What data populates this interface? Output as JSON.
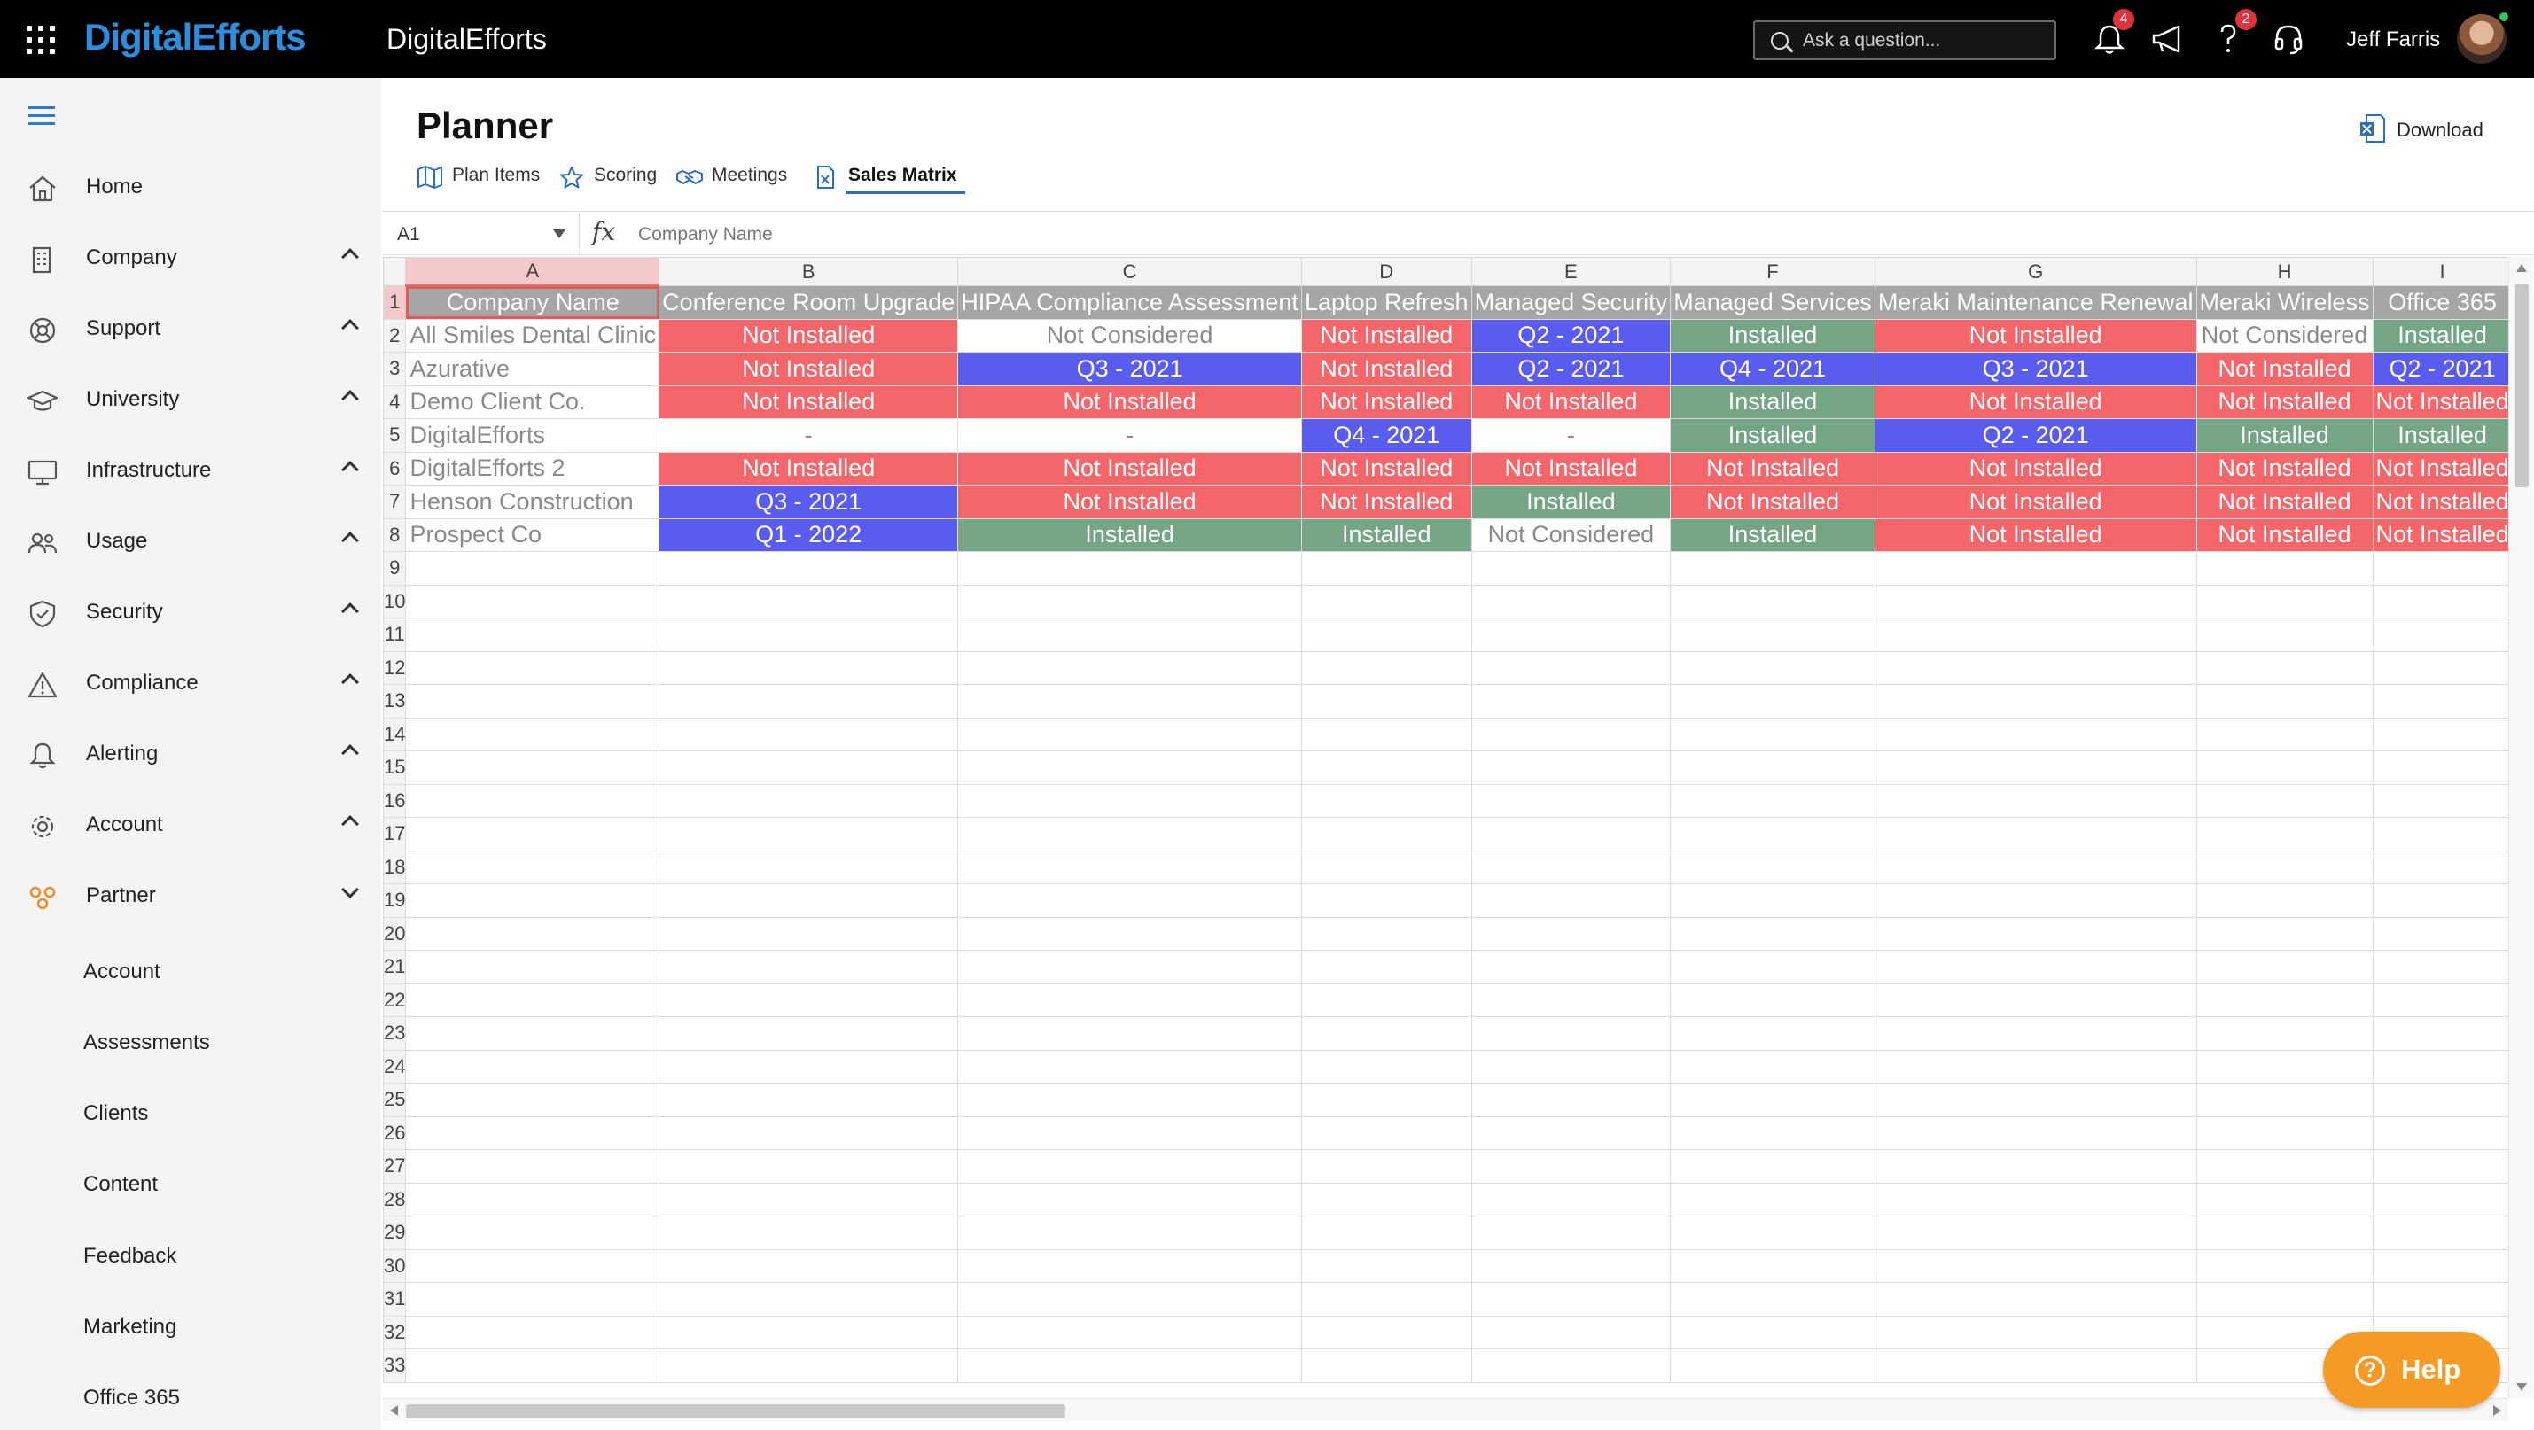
{
  "topbar": {
    "brand": "DigitalEfforts",
    "app_title": "DigitalEfforts",
    "search_placeholder": "Ask a question...",
    "notifications_count": "4",
    "help_count": "2",
    "user_name": "Jeff Farris"
  },
  "sidebar": {
    "items": [
      {
        "label": "Home",
        "icon": "home-icon",
        "chevron": ""
      },
      {
        "label": "Company",
        "icon": "building-icon",
        "chevron": "up"
      },
      {
        "label": "Support",
        "icon": "lifebuoy-icon",
        "chevron": "up"
      },
      {
        "label": "University",
        "icon": "graduation-cap-icon",
        "chevron": "up"
      },
      {
        "label": "Infrastructure",
        "icon": "monitor-icon",
        "chevron": "up"
      },
      {
        "label": "Usage",
        "icon": "people-icon",
        "chevron": "up"
      },
      {
        "label": "Security",
        "icon": "shield-icon",
        "chevron": "up"
      },
      {
        "label": "Compliance",
        "icon": "warning-icon",
        "chevron": "up"
      },
      {
        "label": "Alerting",
        "icon": "bell-icon",
        "chevron": "up"
      },
      {
        "label": "Account",
        "icon": "gear-icon",
        "chevron": "up"
      },
      {
        "label": "Partner",
        "icon": "partner-gears-icon",
        "chevron": "down"
      }
    ],
    "sub_items": [
      "Account",
      "Assessments",
      "Clients",
      "Content",
      "Feedback",
      "Marketing",
      "Office 365"
    ]
  },
  "page": {
    "title": "Planner",
    "download_label": "Download",
    "tabs": [
      {
        "label": "Plan Items",
        "icon": "map-icon",
        "active": false
      },
      {
        "label": "Scoring",
        "icon": "star-icon",
        "active": false
      },
      {
        "label": "Meetings",
        "icon": "handshake-icon",
        "active": false
      },
      {
        "label": "Sales Matrix",
        "icon": "excel-file-icon",
        "active": true
      }
    ]
  },
  "sheet": {
    "name_box": "A1",
    "fx_label": "fx",
    "formula_value": "Company Name",
    "columns": [
      "A",
      "B",
      "C",
      "D",
      "E",
      "F",
      "G",
      "H",
      "I"
    ],
    "headers": [
      "Company Name",
      "Conference Room Upgrade",
      "HIPAA Compliance Assessment",
      "Laptop Refresh",
      "Managed Security",
      "Managed Services",
      "Meraki Maintenance Renewal",
      "Meraki Wireless",
      "Office 365"
    ],
    "rows": [
      {
        "company": "All Smiles Dental Clinic",
        "cells": [
          "Not Installed",
          "Not Considered",
          "Not Installed",
          "Q2 - 2021",
          "Installed",
          "Not Installed",
          "Not Considered",
          "Installed"
        ]
      },
      {
        "company": "Azurative",
        "cells": [
          "Not Installed",
          "Q3 - 2021",
          "Not Installed",
          "Q2 - 2021",
          "Q4 - 2021",
          "Q3 - 2021",
          "Not Installed",
          "Q2 - 2021"
        ]
      },
      {
        "company": "Demo Client Co.",
        "cells": [
          "Not Installed",
          "Not Installed",
          "Not Installed",
          "Not Installed",
          "Installed",
          "Not Installed",
          "Not Installed",
          "Not Installed"
        ]
      },
      {
        "company": "DigitalEfforts",
        "cells": [
          "-",
          "-",
          "Q4 - 2021",
          "-",
          "Installed",
          "Q2 - 2021",
          "Installed",
          "Installed"
        ]
      },
      {
        "company": "DigitalEfforts 2",
        "cells": [
          "Not Installed",
          "Not Installed",
          "Not Installed",
          "Not Installed",
          "Not Installed",
          "Not Installed",
          "Not Installed",
          "Not Installed"
        ]
      },
      {
        "company": "Henson Construction",
        "cells": [
          "Q3 - 2021",
          "Not Installed",
          "Not Installed",
          "Installed",
          "Not Installed",
          "Not Installed",
          "Not Installed",
          "Not Installed"
        ]
      },
      {
        "company": "Prospect Co",
        "cells": [
          "Q1 - 2022",
          "Installed",
          "Installed",
          "Not Considered",
          "Installed",
          "Not Installed",
          "Not Installed",
          "Not Installed"
        ]
      }
    ],
    "total_visible_rows": 33
  },
  "help_button": {
    "label": "Help"
  },
  "colors": {
    "not_installed": "#f4666a",
    "installed": "#74a685",
    "quarter": "#5a5cef",
    "header": "#a6a6a6",
    "brand": "#2b8fe0",
    "help": "#f49a25"
  }
}
